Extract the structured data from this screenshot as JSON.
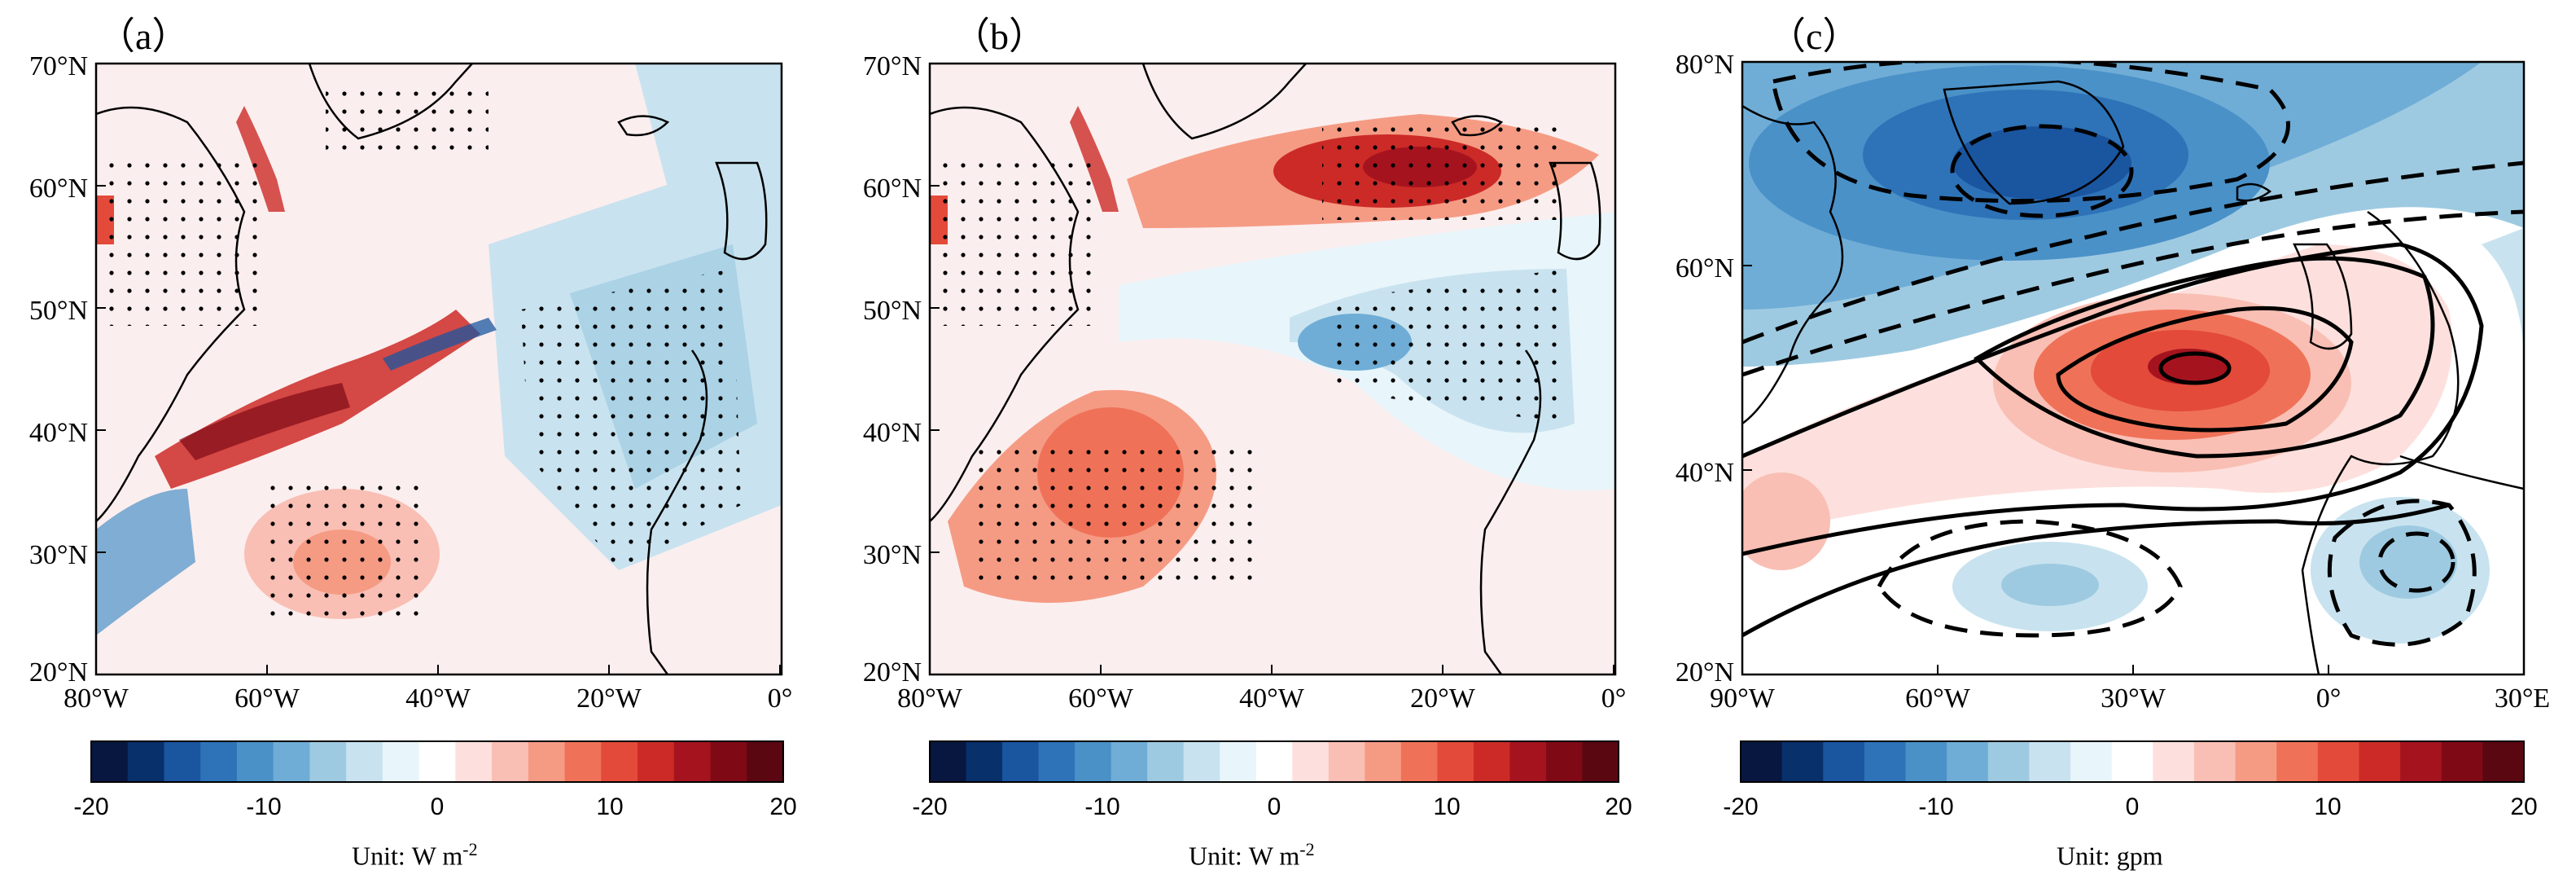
{
  "panels": [
    {
      "label": "（a）",
      "x_ticks": [
        "80°W",
        "60°W",
        "40°W",
        "20°W",
        "0°"
      ],
      "y_ticks": [
        "70°N",
        "60°N",
        "50°N",
        "40°N",
        "30°N",
        "20°N"
      ],
      "colorbar_ticks": [
        "-20",
        "-10",
        "0",
        "10",
        "20"
      ],
      "unit_label": "Unit:",
      "unit_value": "W m",
      "unit_exp": "-2"
    },
    {
      "label": "（b）",
      "x_ticks": [
        "80°W",
        "60°W",
        "40°W",
        "20°W",
        "0°"
      ],
      "y_ticks": [
        "70°N",
        "60°N",
        "50°N",
        "40°N",
        "30°N",
        "20°N"
      ],
      "colorbar_ticks": [
        "-20",
        "-10",
        "0",
        "10",
        "20"
      ],
      "unit_label": "Unit:",
      "unit_value": "W m",
      "unit_exp": "-2"
    },
    {
      "label": "（c）",
      "x_ticks": [
        "90°W",
        "60°W",
        "30°W",
        "0°",
        "30°E"
      ],
      "y_ticks": [
        "80°N",
        "60°N",
        "40°N",
        "20°N"
      ],
      "colorbar_ticks": [
        "-20",
        "-10",
        "0",
        "10",
        "20"
      ],
      "unit_label": "Unit:",
      "unit_value": "gpm",
      "unit_exp": ""
    }
  ],
  "colorbar": {
    "min": -20,
    "max": 20,
    "colors": [
      "#08173f",
      "#08306b",
      "#1a55a0",
      "#2e73b8",
      "#4a91c8",
      "#6fadd6",
      "#9ecae1",
      "#c8e3ef",
      "#e8f5fa",
      "#ffffff",
      "#fde0dd",
      "#f9bfb4",
      "#f59b84",
      "#ef7258",
      "#e34a3a",
      "#cc2a27",
      "#a5141e",
      "#7f0a16",
      "#5a0711"
    ]
  }
}
